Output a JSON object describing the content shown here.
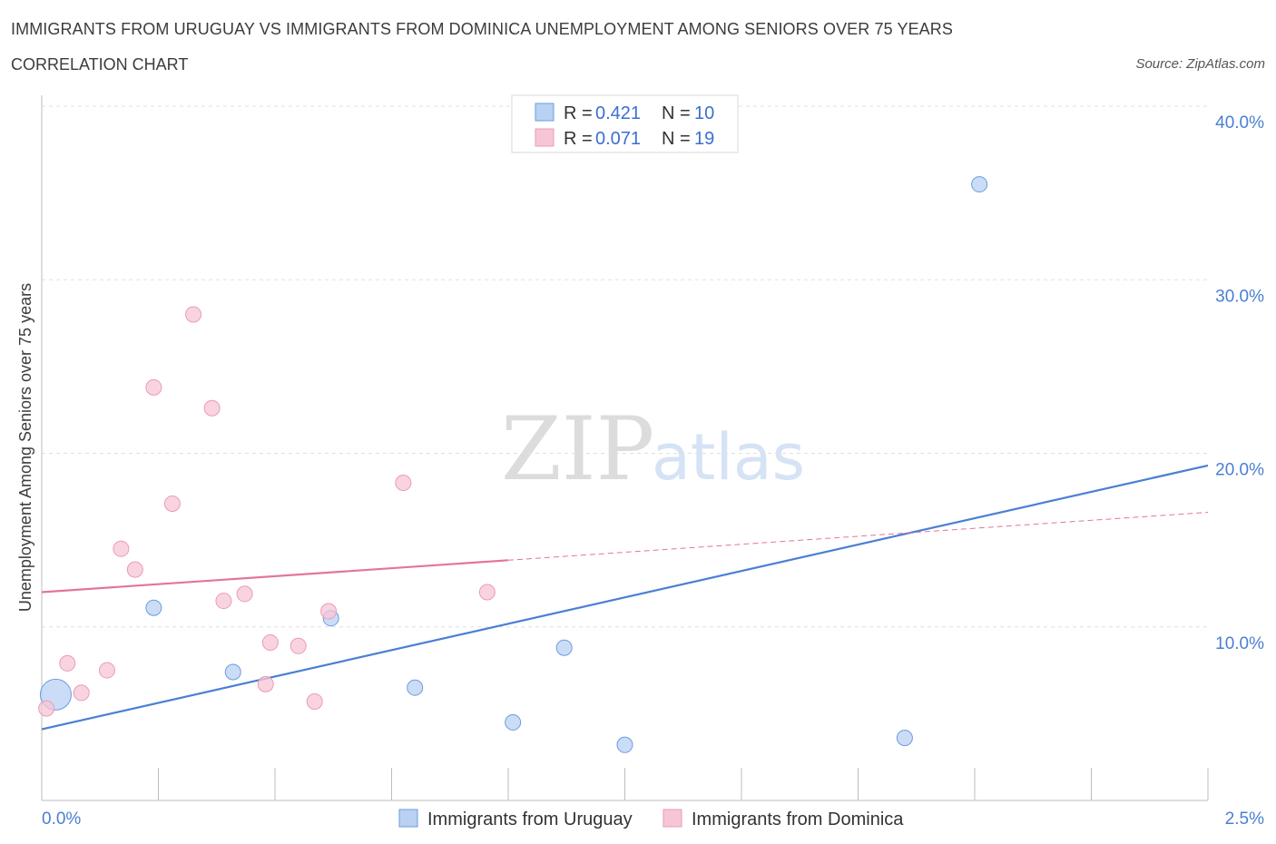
{
  "header": {
    "title": "IMMIGRANTS FROM URUGUAY VS IMMIGRANTS FROM DOMINICA UNEMPLOYMENT AMONG SENIORS OVER 75 YEARS",
    "subtitle": "CORRELATION CHART",
    "source": "Source: ZipAtlas.com"
  },
  "watermark": {
    "zip": "ZIP",
    "atlas": "atlas"
  },
  "legend": {
    "r_label": "R =",
    "n_label": "N =",
    "rows": [
      {
        "series": "Immigrants from Uruguay",
        "r": "0.421",
        "n": "10"
      },
      {
        "series": "Immigrants from Dominica",
        "r": "0.071",
        "n": "19"
      }
    ]
  },
  "chart_data": {
    "type": "scatter",
    "title": "IMMIGRANTS FROM URUGUAY VS IMMIGRANTS FROM DOMINICA UNEMPLOYMENT AMONG SENIORS OVER 75 YEARS",
    "xlabel": "",
    "ylabel": "Unemployment Among Seniors over 75 years",
    "xlim": [
      0,
      2.5
    ],
    "ylim": [
      0,
      40
    ],
    "x_tick_labels": [
      "0.0%",
      "2.5%"
    ],
    "y_ticks": [
      {
        "value": 10,
        "label": "10.0%"
      },
      {
        "value": 20,
        "label": "20.0%"
      },
      {
        "value": 30,
        "label": "30.0%"
      },
      {
        "value": 40,
        "label": "40.0%"
      }
    ],
    "grid": true,
    "series": [
      {
        "name": "Immigrants from Uruguay",
        "color": "#4a7fd4",
        "fill": "#b9d1f3",
        "stroke": "#6d9ae0",
        "points": [
          {
            "x": 0.03,
            "y": 6.1,
            "big": true
          },
          {
            "x": 0.24,
            "y": 11.1
          },
          {
            "x": 0.41,
            "y": 7.4
          },
          {
            "x": 0.62,
            "y": 10.5
          },
          {
            "x": 0.8,
            "y": 6.5
          },
          {
            "x": 1.01,
            "y": 4.5
          },
          {
            "x": 1.12,
            "y": 8.8
          },
          {
            "x": 1.25,
            "y": 3.2
          },
          {
            "x": 1.85,
            "y": 3.6
          },
          {
            "x": 2.01,
            "y": 35.5
          }
        ],
        "trend": {
          "x0": 0.0,
          "y0": 4.1,
          "x1": 2.5,
          "y1": 19.3,
          "dashed_from": null
        }
      },
      {
        "name": "Immigrants from Dominica",
        "color": "#e2759a",
        "fill": "#f7c6d6",
        "stroke": "#ea9bb6",
        "points": [
          {
            "x": 0.01,
            "y": 5.3
          },
          {
            "x": 0.055,
            "y": 7.9
          },
          {
            "x": 0.085,
            "y": 6.2
          },
          {
            "x": 0.14,
            "y": 7.5
          },
          {
            "x": 0.17,
            "y": 14.5
          },
          {
            "x": 0.2,
            "y": 13.3
          },
          {
            "x": 0.24,
            "y": 23.8
          },
          {
            "x": 0.28,
            "y": 17.1
          },
          {
            "x": 0.325,
            "y": 28.0
          },
          {
            "x": 0.365,
            "y": 22.6
          },
          {
            "x": 0.39,
            "y": 11.5
          },
          {
            "x": 0.435,
            "y": 11.9
          },
          {
            "x": 0.48,
            "y": 6.7
          },
          {
            "x": 0.49,
            "y": 9.1
          },
          {
            "x": 0.55,
            "y": 8.9
          },
          {
            "x": 0.585,
            "y": 5.7
          },
          {
            "x": 0.615,
            "y": 10.9
          },
          {
            "x": 0.775,
            "y": 18.3
          },
          {
            "x": 0.955,
            "y": 12.0
          }
        ],
        "trend": {
          "x0": 0.0,
          "y0": 12.0,
          "x1": 2.5,
          "y1": 16.6,
          "dashed_from": 1.0
        }
      }
    ],
    "legend_position": "top-center; bottom"
  }
}
